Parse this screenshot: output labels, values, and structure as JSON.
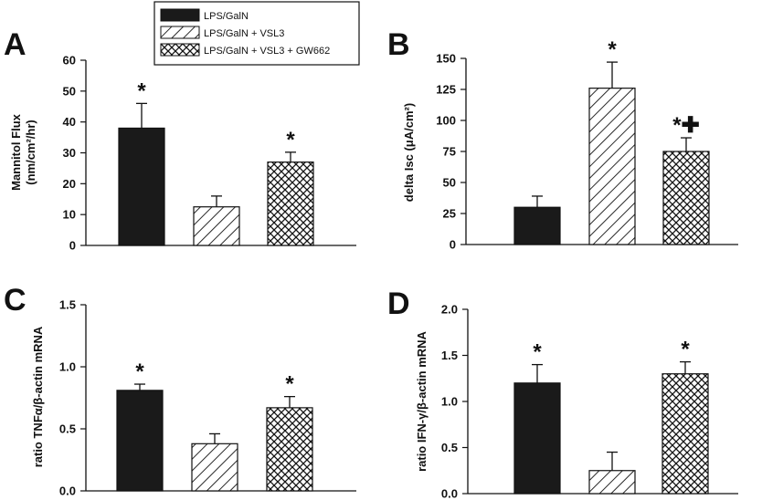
{
  "legend": {
    "items": [
      {
        "label": "LPS/GalN",
        "pattern": "solid"
      },
      {
        "label": "LPS/GalN + VSL3",
        "pattern": "diagonal"
      },
      {
        "label": "LPS/GalN + VSL3 + GW662",
        "pattern": "crosshatch"
      }
    ]
  },
  "chart_data": [
    {
      "panel": "A",
      "type": "bar",
      "ylabel_line1": "Mannitol Flux",
      "ylabel_line2": "(nm/cm²/hr)",
      "ylim": [
        0,
        60
      ],
      "yticks": [
        "0",
        "10",
        "20",
        "30",
        "40",
        "50",
        "60"
      ],
      "series": [
        {
          "name": "LPS/GalN",
          "value": 38,
          "error": 8,
          "annotation": "*"
        },
        {
          "name": "LPS/GalN + VSL3",
          "value": 12.5,
          "error": 3.5,
          "annotation": ""
        },
        {
          "name": "LPS/GalN + VSL3 + GW662",
          "value": 27,
          "error": 3.2,
          "annotation": "*"
        }
      ]
    },
    {
      "panel": "B",
      "type": "bar",
      "ylabel_line1": "delta Isc (μA/cm²)",
      "ylabel_line2": "",
      "ylim": [
        0,
        150
      ],
      "yticks": [
        "0",
        "25",
        "50",
        "75",
        "100",
        "125",
        "150"
      ],
      "series": [
        {
          "name": "LPS/GalN",
          "value": 30,
          "error": 9,
          "annotation": ""
        },
        {
          "name": "LPS/GalN + VSL3",
          "value": 126,
          "error": 21,
          "annotation": "*"
        },
        {
          "name": "LPS/GalN + VSL3 + GW662",
          "value": 75,
          "error": 11,
          "annotation": "*✚"
        }
      ]
    },
    {
      "panel": "C",
      "type": "bar",
      "ylabel_line1": "ratio TNFα/β-actin mRNA",
      "ylabel_line2": "",
      "ylim": [
        0,
        1.5
      ],
      "yticks": [
        "0.0",
        "0.5",
        "1.0",
        "1.5"
      ],
      "series": [
        {
          "name": "LPS/GalN",
          "value": 0.81,
          "error": 0.05,
          "annotation": "*"
        },
        {
          "name": "LPS/GalN + VSL3",
          "value": 0.38,
          "error": 0.08,
          "annotation": ""
        },
        {
          "name": "LPS/GalN + VSL3 + GW662",
          "value": 0.67,
          "error": 0.09,
          "annotation": "*"
        }
      ]
    },
    {
      "panel": "D",
      "type": "bar",
      "ylabel_line1": "ratio IFN-γ/β-actin mRNA",
      "ylabel_line2": "",
      "ylim": [
        0,
        2.0
      ],
      "yticks": [
        "0.0",
        "0.5",
        "1.0",
        "1.5",
        "2.0"
      ],
      "series": [
        {
          "name": "LPS/GalN",
          "value": 1.2,
          "error": 0.2,
          "annotation": "*"
        },
        {
          "name": "LPS/GalN + VSL3",
          "value": 0.25,
          "error": 0.2,
          "annotation": ""
        },
        {
          "name": "LPS/GalN + VSL3 + GW662",
          "value": 1.3,
          "error": 0.13,
          "annotation": "*"
        }
      ]
    }
  ]
}
